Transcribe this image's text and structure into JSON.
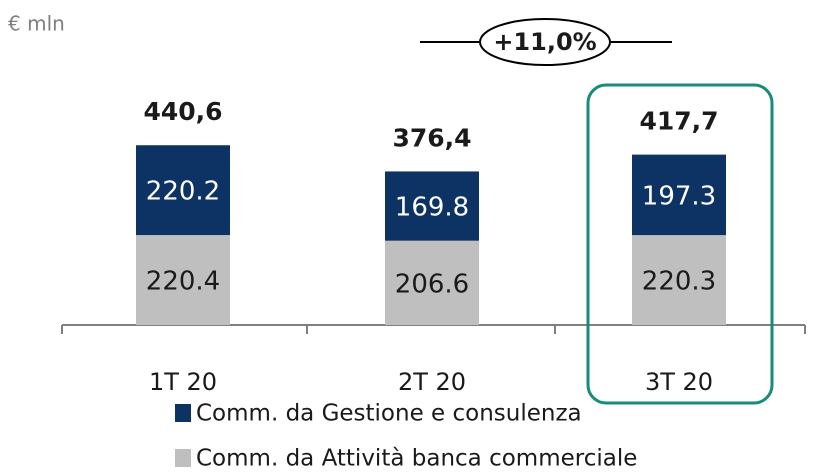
{
  "chart_data": {
    "type": "stacked_bar",
    "unit_label": "€ mln",
    "categories": [
      "1T 20",
      "2T 20",
      "3T 20"
    ],
    "series": [
      {
        "name": "Comm. da Attività banca commerciale",
        "color": "#bfbfbf",
        "label_color": "#1a1a1a",
        "values": [
          220.4,
          206.6,
          220.3
        ]
      },
      {
        "name": "Comm. da Gestione e consulenza",
        "color": "#0d3264",
        "label_color": "#ffffff",
        "values": [
          220.2,
          169.8,
          197.3
        ]
      }
    ],
    "total_labels": [
      "440,6",
      "376,4",
      "417,7"
    ],
    "annotation": "+11,0%",
    "highlight_color": "#1a8a7a",
    "ylim": [
      0,
      500
    ]
  }
}
